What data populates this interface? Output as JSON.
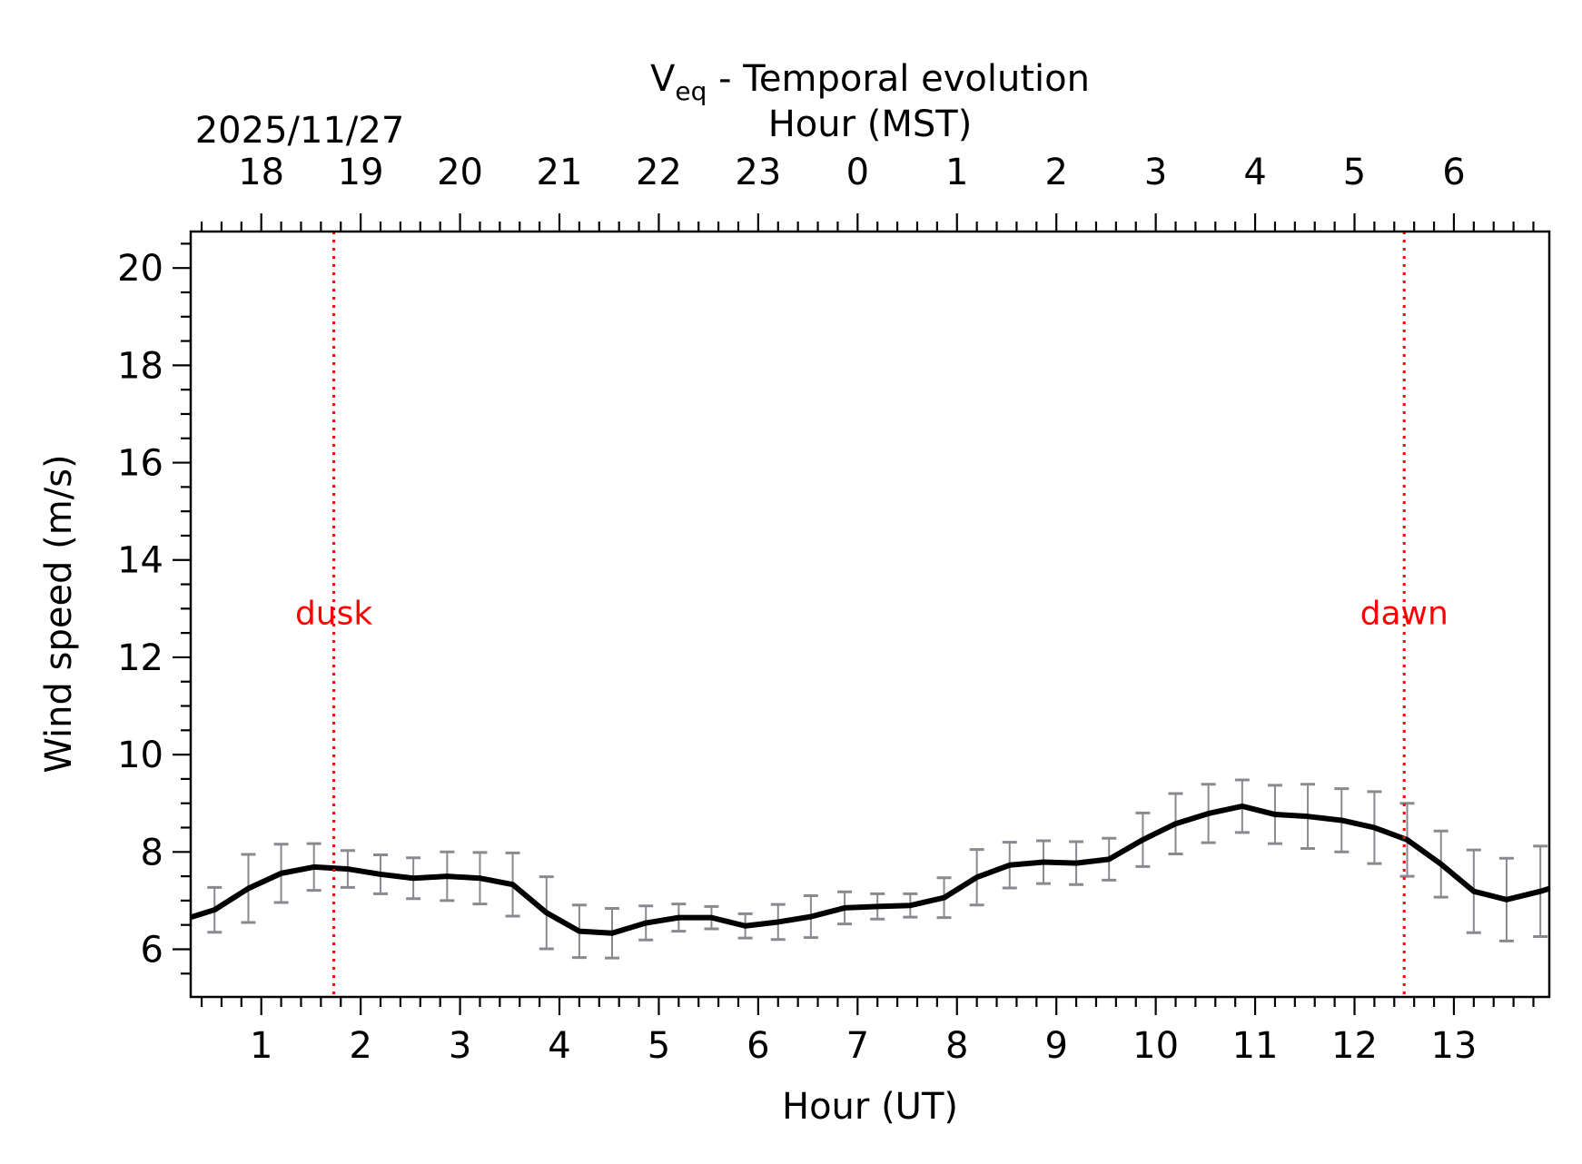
{
  "chart_data": {
    "type": "line",
    "title_parts": {
      "main": "V",
      "sub": "eq",
      "rest": " - Temporal evolution"
    },
    "xlabel": "Hour (UT)",
    "ylabel": "Wind speed (m/s)",
    "top_axis": {
      "label": "Hour (MST)",
      "date": "2025/11/27",
      "tick_labels": [
        "18",
        "19",
        "20",
        "21",
        "22",
        "23",
        "0",
        "1",
        "2",
        "3",
        "4",
        "5",
        "6"
      ]
    },
    "xlim": [
      0.29,
      13.96
    ],
    "ylim": [
      5.02,
      20.75
    ],
    "x_ticks": [
      1,
      2,
      3,
      4,
      5,
      6,
      7,
      8,
      9,
      10,
      11,
      12,
      13
    ],
    "x_tick_labels": [
      "1",
      "2",
      "3",
      "4",
      "5",
      "6",
      "7",
      "8",
      "9",
      "10",
      "11",
      "12",
      "13"
    ],
    "y_ticks": [
      6,
      8,
      10,
      12,
      14,
      16,
      18,
      20
    ],
    "y_tick_labels": [
      "6",
      "8",
      "10",
      "12",
      "14",
      "16",
      "18",
      "20"
    ],
    "grid": false,
    "series": [
      {
        "color": "#000000",
        "error_color": "#888a90",
        "x": [
          0.2,
          0.53,
          0.87,
          1.2,
          1.53,
          1.87,
          2.2,
          2.53,
          2.87,
          3.2,
          3.53,
          3.87,
          4.2,
          4.53,
          4.87,
          5.2,
          5.53,
          5.87,
          6.2,
          6.53,
          6.87,
          7.2,
          7.53,
          7.87,
          8.2,
          8.53,
          8.87,
          9.2,
          9.53,
          9.87,
          10.2,
          10.53,
          10.87,
          11.2,
          11.53,
          11.87,
          12.2,
          12.53,
          12.87,
          13.2,
          13.53,
          13.87,
          14.2
        ],
        "y": [
          6.6,
          6.81,
          7.25,
          7.56,
          7.69,
          7.65,
          7.54,
          7.46,
          7.5,
          7.46,
          7.33,
          6.75,
          6.37,
          6.33,
          6.54,
          6.65,
          6.65,
          6.48,
          6.56,
          6.67,
          6.85,
          6.88,
          6.9,
          7.06,
          7.48,
          7.73,
          7.79,
          7.77,
          7.85,
          8.25,
          8.58,
          8.79,
          8.94,
          8.77,
          8.73,
          8.65,
          8.5,
          8.25,
          7.75,
          7.19,
          7.02,
          7.19,
          7.4
        ],
        "yerr": [
          0.45,
          0.46,
          0.7,
          0.6,
          0.48,
          0.38,
          0.4,
          0.42,
          0.5,
          0.53,
          0.65,
          0.74,
          0.54,
          0.51,
          0.35,
          0.28,
          0.23,
          0.25,
          0.36,
          0.43,
          0.33,
          0.26,
          0.24,
          0.41,
          0.57,
          0.47,
          0.44,
          0.44,
          0.43,
          0.55,
          0.62,
          0.6,
          0.54,
          0.6,
          0.66,
          0.65,
          0.74,
          0.75,
          0.68,
          0.85,
          0.85,
          0.93,
          0.9
        ]
      }
    ],
    "annotations": [
      {
        "label": "dusk",
        "x": 1.73,
        "y": 12.9,
        "color": "#ff0000"
      },
      {
        "label": "dawn",
        "x": 12.5,
        "y": 12.9,
        "color": "#ff0000"
      }
    ]
  }
}
